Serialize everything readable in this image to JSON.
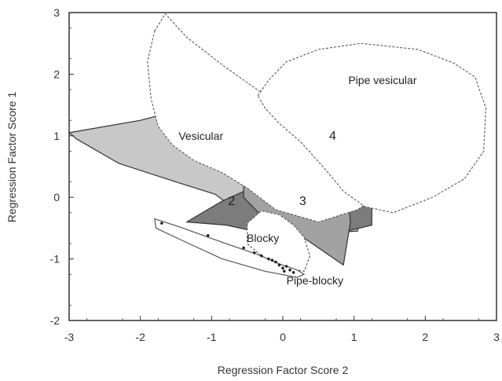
{
  "chart_data": {
    "type": "scatter",
    "title": "",
    "xlabel": "Regression Factor Score 2",
    "ylabel": "Regression Factor Score 1",
    "xlim": [
      -3,
      3
    ],
    "ylim": [
      -2,
      3
    ],
    "xticks": [
      -3,
      -2,
      -1,
      0,
      1,
      2,
      3
    ],
    "yticks": [
      -2,
      -1,
      0,
      1,
      2,
      3
    ],
    "regions": [
      {
        "id": "region-4",
        "label": "4",
        "fill": "#c8c8c8",
        "stroke": "#333333",
        "dashed": false,
        "label_at": [
          0.7,
          1.0
        ],
        "points": [
          [
            -3.0,
            1.05
          ],
          [
            -2.0,
            1.25
          ],
          [
            -1.0,
            1.55
          ],
          [
            0.0,
            1.72
          ],
          [
            0.5,
            1.9
          ],
          [
            1.1,
            1.72
          ],
          [
            1.3,
            1.6
          ],
          [
            1.2,
            0.6
          ],
          [
            1.05,
            -0.55
          ],
          [
            0.2,
            -0.6
          ],
          [
            -0.6,
            -0.25
          ],
          [
            -0.95,
            0.05
          ],
          [
            -1.5,
            0.25
          ],
          [
            -2.3,
            0.55
          ],
          [
            -2.9,
            0.95
          ]
        ]
      },
      {
        "id": "region-2",
        "label": "2",
        "fill": "#7c7c7c",
        "stroke": "#333333",
        "dashed": false,
        "label_at": [
          -0.72,
          -0.06
        ],
        "points": [
          [
            -1.35,
            -0.4
          ],
          [
            -0.85,
            -0.06
          ],
          [
            -0.25,
            0.25
          ],
          [
            0.25,
            0.22
          ],
          [
            0.8,
            0.0
          ],
          [
            1.25,
            -0.15
          ],
          [
            1.25,
            -0.45
          ],
          [
            0.9,
            -0.55
          ],
          [
            -0.2,
            -0.6
          ],
          [
            -0.8,
            -0.45
          ]
        ]
      },
      {
        "id": "region-3",
        "label": "3",
        "fill": "#a2a2a2",
        "stroke": "#333333",
        "dashed": false,
        "label_at": [
          0.28,
          -0.06
        ],
        "points": [
          [
            -0.55,
            0.25
          ],
          [
            -0.3,
            0.5
          ],
          [
            -0.05,
            0.55
          ],
          [
            0.4,
            0.42
          ],
          [
            0.65,
            0.35
          ],
          [
            0.9,
            0.15
          ],
          [
            0.95,
            -0.4
          ],
          [
            0.85,
            -1.1
          ],
          [
            0.6,
            -0.9
          ],
          [
            0.35,
            -0.7
          ],
          [
            0.1,
            -0.55
          ],
          [
            -0.1,
            -0.45
          ],
          [
            -0.3,
            -0.3
          ],
          [
            -0.55,
            0.0
          ]
        ]
      },
      {
        "id": "region-vesicular",
        "label": "Vesicular",
        "fill": "#ffffff",
        "stroke": "#555555",
        "dashed": true,
        "label_at": [
          -1.15,
          1.0
        ],
        "points": [
          [
            -1.8,
            2.7
          ],
          [
            -1.65,
            2.98
          ],
          [
            -1.35,
            2.6
          ],
          [
            -0.85,
            2.15
          ],
          [
            -0.3,
            1.7
          ],
          [
            0.2,
            1.4
          ],
          [
            0.7,
            1.0
          ],
          [
            1.0,
            0.5
          ],
          [
            1.2,
            0.2
          ],
          [
            1.3,
            0.0
          ],
          [
            1.05,
            -0.2
          ],
          [
            0.5,
            -0.4
          ],
          [
            -0.1,
            -0.2
          ],
          [
            -0.5,
            0.15
          ],
          [
            -0.85,
            0.4
          ],
          [
            -1.25,
            0.6
          ],
          [
            -1.55,
            0.85
          ],
          [
            -1.75,
            1.15
          ],
          [
            -1.85,
            1.6
          ],
          [
            -1.9,
            2.2
          ]
        ]
      },
      {
        "id": "region-pipe-vesicular",
        "label": "Pipe vesicular",
        "fill": "#ffffff",
        "stroke": "#555555",
        "dashed": true,
        "label_at": [
          1.4,
          1.9
        ],
        "points": [
          [
            -0.35,
            1.65
          ],
          [
            -0.2,
            1.9
          ],
          [
            0.05,
            2.2
          ],
          [
            0.5,
            2.4
          ],
          [
            1.1,
            2.5
          ],
          [
            1.9,
            2.4
          ],
          [
            2.4,
            2.18
          ],
          [
            2.7,
            1.95
          ],
          [
            2.85,
            1.45
          ],
          [
            2.82,
            0.75
          ],
          [
            2.55,
            0.3
          ],
          [
            2.1,
            0.0
          ],
          [
            1.55,
            -0.25
          ],
          [
            1.15,
            -0.15
          ],
          [
            0.85,
            0.1
          ],
          [
            0.6,
            0.45
          ],
          [
            0.25,
            0.9
          ],
          [
            -0.05,
            1.2
          ],
          [
            -0.25,
            1.45
          ]
        ]
      },
      {
        "id": "region-blocky",
        "label": "Blocky",
        "fill": "#ffffff",
        "stroke": "#555555",
        "dashed": true,
        "label_at": [
          -0.28,
          -0.66
        ],
        "points": [
          [
            -0.5,
            -0.42
          ],
          [
            -0.3,
            -0.22
          ],
          [
            -0.05,
            -0.28
          ],
          [
            0.15,
            -0.45
          ],
          [
            0.3,
            -0.65
          ],
          [
            0.38,
            -0.95
          ],
          [
            0.3,
            -1.2
          ],
          [
            0.05,
            -1.15
          ],
          [
            -0.3,
            -0.95
          ],
          [
            -0.5,
            -0.75
          ]
        ]
      },
      {
        "id": "region-pipe-blocky",
        "label": "Pipe-blocky",
        "fill": "#ffffff",
        "stroke": "#555555",
        "dashed": false,
        "label_at": [
          0.45,
          -1.35
        ],
        "points": [
          [
            -1.8,
            -0.35
          ],
          [
            -1.45,
            -0.48
          ],
          [
            -0.85,
            -0.73
          ],
          [
            -0.35,
            -0.93
          ],
          [
            -0.05,
            -1.08
          ],
          [
            0.2,
            -1.18
          ],
          [
            0.3,
            -1.25
          ],
          [
            0.2,
            -1.3
          ],
          [
            -0.25,
            -1.2
          ],
          [
            -0.85,
            -1.0
          ],
          [
            -1.45,
            -0.68
          ],
          [
            -1.78,
            -0.5
          ]
        ]
      }
    ],
    "points": [
      [
        -0.1,
        -1.05
      ],
      [
        -0.05,
        -1.1
      ],
      [
        0.0,
        -1.15
      ],
      [
        -0.2,
        -1.0
      ],
      [
        -0.3,
        -0.95
      ],
      [
        0.05,
        -1.12
      ],
      [
        -0.15,
        -1.02
      ],
      [
        0.1,
        -1.18
      ],
      [
        -0.4,
        -0.9
      ],
      [
        -0.55,
        -0.82
      ],
      [
        0.15,
        -1.22
      ],
      [
        0.02,
        -1.2
      ],
      [
        -1.05,
        -0.62
      ],
      [
        -1.7,
        -0.42
      ]
    ]
  }
}
